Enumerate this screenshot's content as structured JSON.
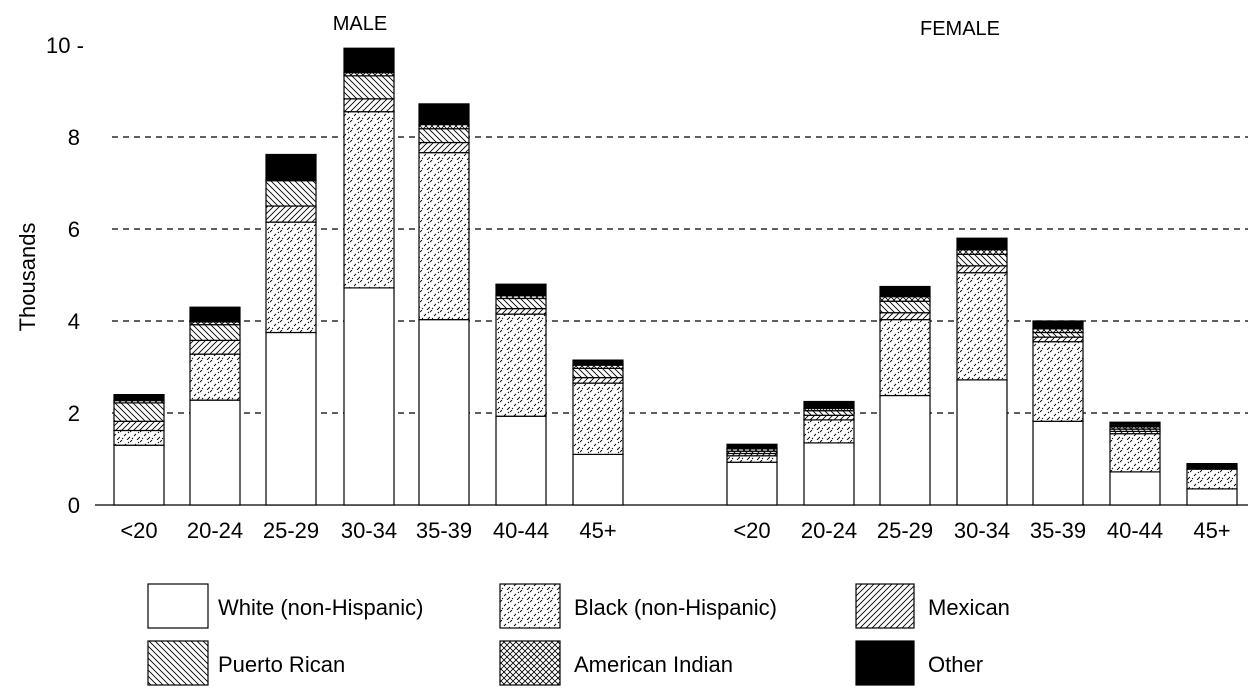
{
  "chart_data": {
    "type": "bar",
    "stacked": true,
    "ylabel": "Thousands",
    "ylim": [
      0,
      10
    ],
    "yticks": [
      "0",
      "2",
      "4",
      "6",
      "8",
      "10 -"
    ],
    "grid": "dashed horizontal lines at 2, 4, 6, 8",
    "legend_position": "bottom",
    "panels": [
      {
        "title": "MALE",
        "categories": [
          "<20",
          "20-24",
          "25-29",
          "30-34",
          "35-39",
          "40-44",
          "45+"
        ]
      },
      {
        "title": "FEMALE",
        "categories": [
          "<20",
          "20-24",
          "25-29",
          "30-34",
          "35-39",
          "40-44",
          "45+"
        ]
      }
    ],
    "series": [
      {
        "name": "White (non-Hispanic)",
        "pattern": "blank",
        "values": [
          1.3,
          2.28,
          3.75,
          4.72,
          4.03,
          1.93,
          1.1,
          0.93,
          1.35,
          2.38,
          2.72,
          1.82,
          0.72,
          0.35
        ]
      },
      {
        "name": "Black (non-Hispanic)",
        "pattern": "speckle",
        "values": [
          0.32,
          1.0,
          2.4,
          3.83,
          3.63,
          2.22,
          1.55,
          0.14,
          0.5,
          1.65,
          2.33,
          1.73,
          0.83,
          0.43
        ]
      },
      {
        "name": "Mexican",
        "pattern": "forward-diagonal",
        "values": [
          0.2,
          0.3,
          0.35,
          0.28,
          0.22,
          0.12,
          0.12,
          0.05,
          0.1,
          0.15,
          0.15,
          0.1,
          0.05,
          0.0
        ]
      },
      {
        "name": "Puerto Rican",
        "pattern": "back-diagonal",
        "values": [
          0.4,
          0.34,
          0.55,
          0.5,
          0.3,
          0.22,
          0.2,
          0.05,
          0.1,
          0.25,
          0.25,
          0.1,
          0.05,
          0.0
        ]
      },
      {
        "name": "American Indian",
        "pattern": "cross-hatch",
        "values": [
          0.05,
          0.06,
          0.02,
          0.07,
          0.09,
          0.06,
          0.07,
          0.05,
          0.05,
          0.1,
          0.1,
          0.08,
          0.05,
          0.01
        ]
      },
      {
        "name": "Other",
        "pattern": "solid",
        "values": [
          0.13,
          0.32,
          0.55,
          0.53,
          0.45,
          0.25,
          0.11,
          0.1,
          0.15,
          0.22,
          0.25,
          0.17,
          0.1,
          0.11
        ]
      }
    ]
  }
}
